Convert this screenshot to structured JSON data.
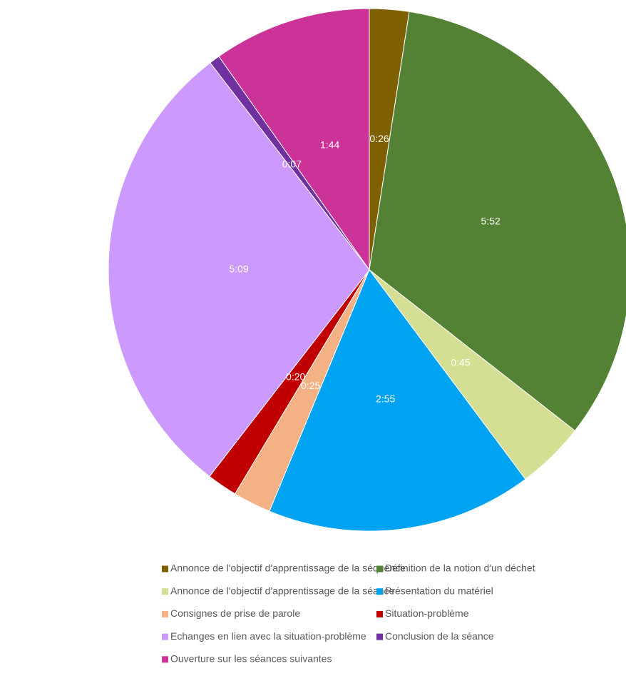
{
  "chart_data": {
    "type": "pie",
    "categories": [
      "Annonce de l'objectif d'apprentissage de la séquence",
      "Définition de la notion d'un déchet",
      "Annonce de l'objectif d'apprentissage de la séance",
      "Présentation du matériel",
      "Consignes de prise de parole",
      "Situation-problème",
      "Echanges en lien avec la situation-problème",
      "Conclusion de la séance",
      "Ouverture sur les séances suivantes"
    ],
    "values": [
      26,
      352,
      45,
      175,
      25,
      20,
      309,
      7,
      104
    ],
    "value_labels": [
      "0:26",
      "5:52",
      "0:45",
      "2:55",
      "0:25",
      "0:20",
      "5:09",
      "0:07",
      "1:44"
    ],
    "colors": [
      "#7f6000",
      "#548235",
      "#d4df94",
      "#00a2f2",
      "#f4b183",
      "#c00000",
      "#cc99ff",
      "#7030a0",
      "#cc3399"
    ],
    "legend": "bottom"
  }
}
